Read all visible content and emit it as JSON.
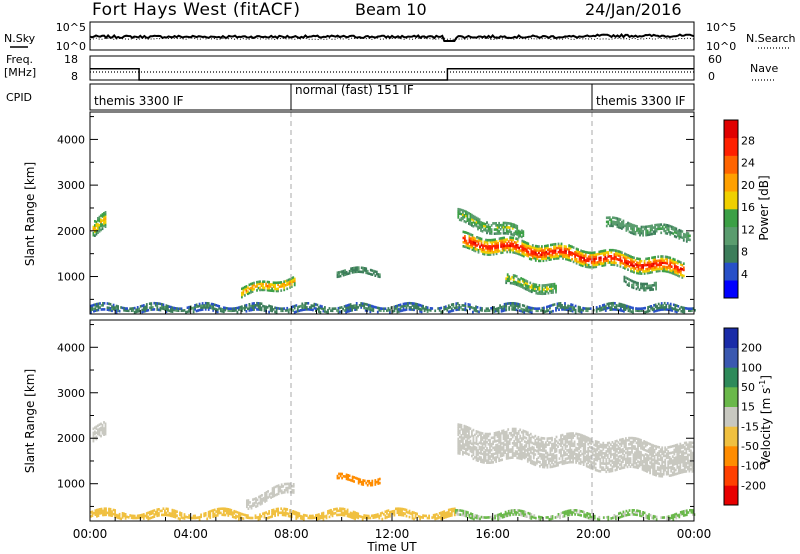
{
  "header": {
    "station": "Fort Hays West (fitACF)",
    "beam": "Beam 10",
    "date": "24/Jan/2016"
  },
  "noise_panel": {
    "left_label": "N.Sky",
    "right_label": "N.Search",
    "ticks_left": [
      "10^5",
      "10^0"
    ],
    "ticks_right": [
      "10^5",
      "10^0"
    ]
  },
  "freq_panel": {
    "left_label_line1": "Freq.",
    "left_label_line2": "[MHz]",
    "right_label": "Nave",
    "ticks_left": [
      "18",
      "8"
    ],
    "ticks_right": [
      "60",
      "0"
    ]
  },
  "cpid_panel": {
    "label": "CPID",
    "modes": [
      {
        "name": "themis 3300 IF",
        "start_hour": 0,
        "end_hour": 8
      },
      {
        "name": "normal (fast) 151 IF",
        "start_hour": 8,
        "end_hour": 20
      },
      {
        "name": "themis 3300 IF",
        "start_hour": 20,
        "end_hour": 24
      }
    ]
  },
  "power_panel": {
    "ylabel": "Slant Range [km]",
    "yticks": [
      "4000",
      "3000",
      "2000",
      "1000"
    ],
    "colorbar_title": "Power [dB]",
    "colorbar_ticks": [
      "28",
      "24",
      "20",
      "16",
      "12",
      "8",
      "4"
    ],
    "colorbar_colors": [
      "#0000ff",
      "#2850c8",
      "#3c7d5a",
      "#5a9c6e",
      "#3ca046",
      "#f0d000",
      "#ffa000",
      "#ff6400",
      "#ff2000",
      "#e00000"
    ]
  },
  "velocity_panel": {
    "ylabel": "Slant Range [km]",
    "yticks": [
      "4000",
      "3000",
      "2000",
      "1000"
    ],
    "colorbar_title_main": "Velocity [m s",
    "colorbar_title_sup": "-1",
    "colorbar_title_end": "]",
    "colorbar_ticks": [
      "200",
      "100",
      "50",
      "15",
      "-15",
      "-50",
      "-100",
      "-200"
    ],
    "colorbar_colors": [
      "#1a2ca8",
      "#3a58b0",
      "#2e8a5a",
      "#6ab84a",
      "#c8c8c0",
      "#f0c040",
      "#ff8c00",
      "#ff4000",
      "#e80000"
    ]
  },
  "x_axis": {
    "ticks": [
      "00:00",
      "04:00",
      "08:00",
      "12:00",
      "16:00",
      "20:00",
      "00:00"
    ],
    "label": "Time UT"
  },
  "chart_data": {
    "type": "heatmap",
    "x_range_hours": [
      0,
      24
    ],
    "y_range_km": [
      180,
      4600
    ],
    "power_db_range": [
      0,
      30
    ],
    "velocity_range": [
      -250,
      250
    ],
    "freq_mhz_series": {
      "times": [
        0,
        1.95,
        1.95,
        14.2,
        14.2,
        24
      ],
      "values": [
        15.2,
        15.2,
        10.5,
        10.5,
        15.2,
        15.2
      ]
    },
    "power_echoes": [
      {
        "t0": 14.8,
        "t1": 23.6,
        "r0": 1750,
        "r1": 1150,
        "width": 320,
        "core_db": 28,
        "edge_db": 12
      },
      {
        "t0": 14.6,
        "t1": 17.2,
        "r0": 2300,
        "r1": 1900,
        "width": 250,
        "core_db": 14,
        "edge_db": 10
      },
      {
        "t0": 20.5,
        "t1": 23.8,
        "r0": 2150,
        "r1": 1900,
        "width": 200,
        "core_db": 12,
        "edge_db": 9
      },
      {
        "t0": 21.2,
        "t1": 22.5,
        "r0": 900,
        "r1": 750,
        "width": 150,
        "core_db": 10,
        "edge_db": 8
      },
      {
        "t0": 16.5,
        "t1": 18.5,
        "r0": 900,
        "r1": 700,
        "width": 200,
        "core_db": 16,
        "edge_db": 10
      },
      {
        "t0": 6.0,
        "t1": 8.1,
        "r0": 650,
        "r1": 900,
        "width": 200,
        "core_db": 20,
        "edge_db": 12
      },
      {
        "t0": 9.8,
        "t1": 11.5,
        "r0": 1080,
        "r1": 1080,
        "width": 100,
        "core_db": 9,
        "edge_db": 8
      },
      {
        "t0": 0.1,
        "t1": 0.6,
        "r0": 2000,
        "r1": 2200,
        "width": 350,
        "core_db": 18,
        "edge_db": 10
      },
      {
        "t0": 0.0,
        "t1": 24.0,
        "r0": 280,
        "r1": 280,
        "width": 150,
        "core_db": 9,
        "edge_db": 5
      }
    ],
    "velocity_echoes": [
      {
        "t0": 14.6,
        "t1": 23.9,
        "r0": 1900,
        "r1": 1500,
        "width": 650,
        "velocity": 0
      },
      {
        "t0": 6.2,
        "t1": 8.1,
        "r0": 600,
        "r1": 880,
        "width": 200,
        "velocity": 0
      },
      {
        "t0": 9.8,
        "t1": 11.5,
        "r0": 1080,
        "r1": 1080,
        "width": 100,
        "velocity": -70
      },
      {
        "t0": 0.0,
        "t1": 14.5,
        "r0": 290,
        "r1": 290,
        "width": 140,
        "velocity": -40
      },
      {
        "t0": 14.5,
        "t1": 24.0,
        "r0": 290,
        "r1": 290,
        "width": 120,
        "velocity": 20
      },
      {
        "t0": 0.1,
        "t1": 0.6,
        "r0": 2050,
        "r1": 2150,
        "width": 300,
        "velocity": 0
      }
    ]
  }
}
